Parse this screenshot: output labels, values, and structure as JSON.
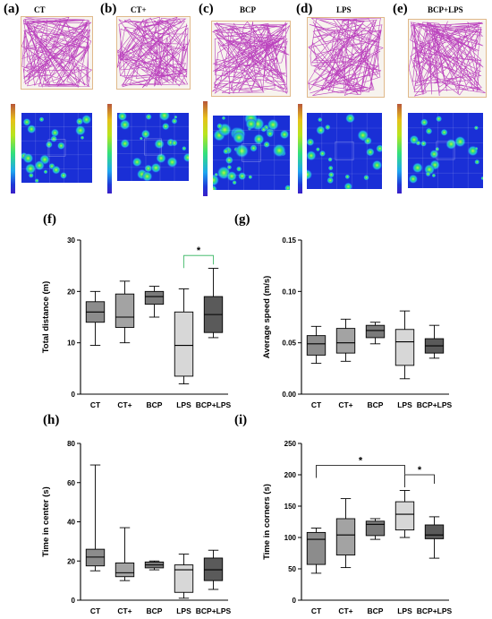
{
  "panel_labels": [
    "(a)",
    "(b)",
    "(c)",
    "(d)",
    "(e)",
    "(f)",
    "(g)",
    "(h)",
    "(i)"
  ],
  "groups": [
    "CT",
    "CT+",
    "BCP",
    "LPS",
    "BCP+LPS"
  ],
  "track_titles": [
    "CT",
    "CT+",
    "BCP",
    "LPS",
    "BCP+LPS"
  ],
  "colors": {
    "track_line": "#b023b5",
    "heat_background": "#1a2fd6",
    "box_fills": [
      "#8c8c8c",
      "#a3a3a3",
      "#7a7a7a",
      "#d7d7d7",
      "#5a5a5a"
    ],
    "significance": "#2db35a"
  },
  "chart_data": [
    {
      "id": "f",
      "type": "box",
      "ylabel": "Total distance (m)",
      "ylim": [
        0,
        30
      ],
      "yticks": [
        "0",
        "10",
        "20",
        "30"
      ],
      "categories": [
        "CT",
        "CT+",
        "BCP",
        "LPS",
        "BCP+LPS"
      ],
      "boxes": [
        {
          "min": 9.5,
          "q1": 14,
          "median": 16,
          "q3": 18,
          "max": 20
        },
        {
          "min": 10,
          "q1": 13,
          "median": 15,
          "q3": 19.5,
          "max": 22
        },
        {
          "min": 15,
          "q1": 17.5,
          "median": 19,
          "q3": 20,
          "max": 21
        },
        {
          "min": 2,
          "q1": 3.5,
          "median": 9.5,
          "q3": 16,
          "max": 20.5
        },
        {
          "min": 11,
          "q1": 12,
          "median": 15.5,
          "q3": 19,
          "max": 24.5
        }
      ],
      "significance": [
        {
          "from": 3,
          "to": 4,
          "label": "*"
        }
      ]
    },
    {
      "id": "g",
      "type": "box",
      "ylabel": "Average speed (m/s)",
      "ylim": [
        0,
        0.15
      ],
      "yticks": [
        "0.00",
        "0.05",
        "0.10",
        "0.15"
      ],
      "categories": [
        "CT",
        "CT+",
        "BCP",
        "LPS",
        "BCP+LPS"
      ],
      "boxes": [
        {
          "min": 0.03,
          "q1": 0.038,
          "median": 0.049,
          "q3": 0.057,
          "max": 0.066
        },
        {
          "min": 0.032,
          "q1": 0.04,
          "median": 0.05,
          "q3": 0.064,
          "max": 0.073
        },
        {
          "min": 0.049,
          "q1": 0.055,
          "median": 0.062,
          "q3": 0.067,
          "max": 0.07
        },
        {
          "min": 0.015,
          "q1": 0.028,
          "median": 0.051,
          "q3": 0.063,
          "max": 0.081
        },
        {
          "min": 0.035,
          "q1": 0.04,
          "median": 0.047,
          "q3": 0.054,
          "max": 0.067
        }
      ]
    },
    {
      "id": "h",
      "type": "box",
      "ylabel": "Time in center (s)",
      "ylim": [
        0,
        80
      ],
      "yticks": [
        "0",
        "20",
        "40",
        "60",
        "80"
      ],
      "categories": [
        "CT",
        "CT+",
        "BCP",
        "LPS",
        "BCP+LPS"
      ],
      "boxes": [
        {
          "min": 15,
          "q1": 17.5,
          "median": 22,
          "q3": 26,
          "max": 69
        },
        {
          "min": 10,
          "q1": 12,
          "median": 14,
          "q3": 19,
          "max": 37
        },
        {
          "min": 15.5,
          "q1": 16.5,
          "median": 18,
          "q3": 19.5,
          "max": 20
        },
        {
          "min": 1,
          "q1": 4,
          "median": 15.5,
          "q3": 18,
          "max": 23.5
        },
        {
          "min": 5.5,
          "q1": 10,
          "median": 15.5,
          "q3": 21.5,
          "max": 25.5
        }
      ]
    },
    {
      "id": "i",
      "type": "box",
      "ylabel": "Time in corners (s)",
      "ylim": [
        0,
        250
      ],
      "yticks": [
        "0",
        "50",
        "100",
        "150",
        "200",
        "250"
      ],
      "categories": [
        "CT",
        "CT+",
        "BCP",
        "LPS",
        "BCP+LPS"
      ],
      "boxes": [
        {
          "min": 43,
          "q1": 57,
          "median": 97,
          "q3": 108,
          "max": 115
        },
        {
          "min": 52,
          "q1": 72,
          "median": 104,
          "q3": 130,
          "max": 162
        },
        {
          "min": 97,
          "q1": 103,
          "median": 121,
          "q3": 126,
          "max": 130
        },
        {
          "min": 100,
          "q1": 112,
          "median": 137,
          "q3": 157,
          "max": 175
        },
        {
          "min": 67,
          "q1": 98,
          "median": 104,
          "q3": 120,
          "max": 133
        }
      ],
      "significance": [
        {
          "from": 0,
          "to": 3,
          "label": "*"
        },
        {
          "from": 3,
          "to": 4,
          "label": "*"
        }
      ]
    }
  ]
}
